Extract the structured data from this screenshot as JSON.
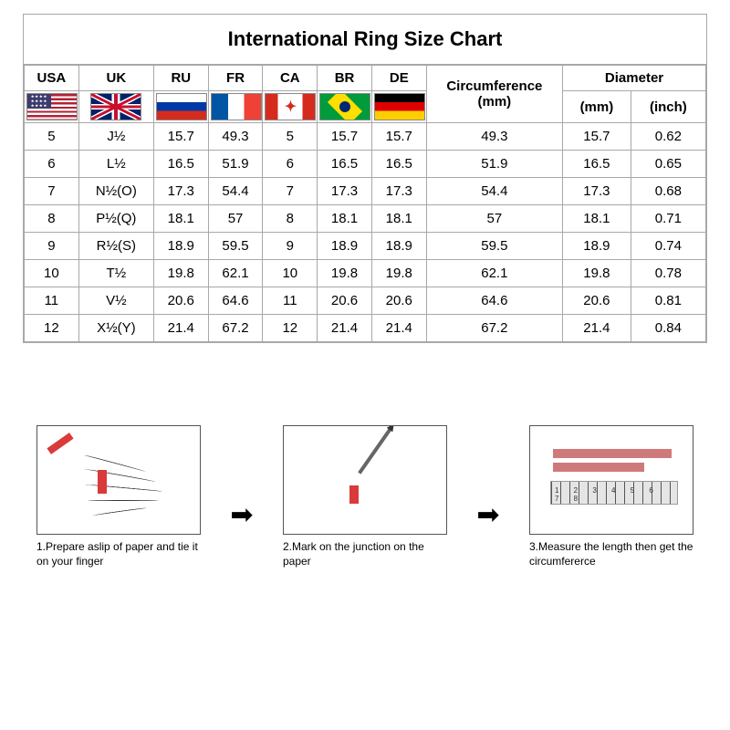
{
  "title": "International Ring Size Chart",
  "columns": {
    "usa": "USA",
    "uk": "UK",
    "ru": "RU",
    "fr": "FR",
    "ca": "CA",
    "br": "BR",
    "de": "DE",
    "circ": "Circumference",
    "circ_unit": "(mm)",
    "diam": "Diameter",
    "diam_mm": "(mm)",
    "diam_in": "(inch)"
  },
  "rows": [
    {
      "usa": "5",
      "uk": "J½",
      "ru": "15.7",
      "fr": "49.3",
      "ca": "5",
      "br": "15.7",
      "de": "15.7",
      "circ": "49.3",
      "dmm": "15.7",
      "din": "0.62"
    },
    {
      "usa": "6",
      "uk": "L½",
      "ru": "16.5",
      "fr": "51.9",
      "ca": "6",
      "br": "16.5",
      "de": "16.5",
      "circ": "51.9",
      "dmm": "16.5",
      "din": "0.65"
    },
    {
      "usa": "7",
      "uk": "N½(O)",
      "ru": "17.3",
      "fr": "54.4",
      "ca": "7",
      "br": "17.3",
      "de": "17.3",
      "circ": "54.4",
      "dmm": "17.3",
      "din": "0.68"
    },
    {
      "usa": "8",
      "uk": "P½(Q)",
      "ru": "18.1",
      "fr": "57",
      "ca": "8",
      "br": "18.1",
      "de": "18.1",
      "circ": "57",
      "dmm": "18.1",
      "din": "0.71"
    },
    {
      "usa": "9",
      "uk": "R½(S)",
      "ru": "18.9",
      "fr": "59.5",
      "ca": "9",
      "br": "18.9",
      "de": "18.9",
      "circ": "59.5",
      "dmm": "18.9",
      "din": "0.74"
    },
    {
      "usa": "10",
      "uk": "T½",
      "ru": "19.8",
      "fr": "62.1",
      "ca": "10",
      "br": "19.8",
      "de": "19.8",
      "circ": "62.1",
      "dmm": "19.8",
      "din": "0.78"
    },
    {
      "usa": "11",
      "uk": "V½",
      "ru": "20.6",
      "fr": "64.6",
      "ca": "11",
      "br": "20.6",
      "de": "20.6",
      "circ": "64.6",
      "dmm": "20.6",
      "din": "0.81"
    },
    {
      "usa": "12",
      "uk": "X½(Y)",
      "ru": "21.4",
      "fr": "67.2",
      "ca": "12",
      "br": "21.4",
      "de": "21.4",
      "circ": "67.2",
      "dmm": "21.4",
      "din": "0.84"
    }
  ],
  "steps": {
    "s1": "1.Prepare aslip of paper and tie it on your finger",
    "s2": "2.Mark on the junction on the paper",
    "s3": "3.Measure the length then get the circumfererce"
  },
  "colors": {
    "border": "#a8a8a8",
    "accent_red": "#d93a3a",
    "ruler_bg": "#e5e5e5"
  },
  "col_widths_pct": [
    8,
    11,
    8,
    8,
    8,
    8,
    8,
    20,
    10,
    11
  ]
}
